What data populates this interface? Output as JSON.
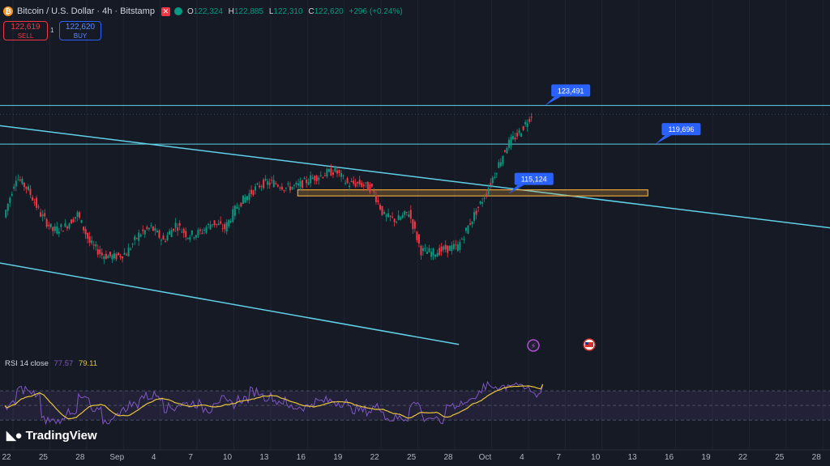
{
  "header": {
    "title": "Bitcoin / U.S. Dollar · 4h · Bitstamp",
    "icon": "bitcoin-icon",
    "ohlc": [
      {
        "key": "O",
        "value": "122,324"
      },
      {
        "key": "H",
        "value": "122,885"
      },
      {
        "key": "L",
        "value": "122,310"
      },
      {
        "key": "C",
        "value": "122,620"
      }
    ],
    "change": "+296 (+0.24%)"
  },
  "trade": {
    "sell_price": "122,619",
    "sell_label": "SELL",
    "spread": "1",
    "buy_price": "122,620",
    "buy_label": "BUY"
  },
  "rsi": {
    "name": "RSI 14 close",
    "value": "77.57",
    "ma": "79.11"
  },
  "brand": "TradingView",
  "colors": {
    "background": "#161a25",
    "up": "#089981",
    "down": "#f23645",
    "trendline": "#5fd0e6",
    "zone": "#e8a33b",
    "callout": "#2962ff",
    "rsi": "#7e57c2",
    "rsi_ma": "#e8c53a"
  },
  "chart_data": {
    "type": "candlestick",
    "timeframe": "4h",
    "x_ticks": [
      "22",
      "25",
      "28",
      "Sep",
      "4",
      "7",
      "10",
      "13",
      "16",
      "19",
      "22",
      "25",
      "28",
      "Oct",
      "4",
      "7",
      "10",
      "13",
      "16",
      "19",
      "22",
      "25",
      "28"
    ],
    "price_path": [
      {
        "date": "Aug 22",
        "close": 112500
      },
      {
        "date": "Aug 23",
        "close": 116500
      },
      {
        "date": "Aug 24",
        "close": 115200
      },
      {
        "date": "Aug 25",
        "close": 112800
      },
      {
        "date": "Aug 26",
        "close": 111200
      },
      {
        "date": "Aug 27",
        "close": 111600
      },
      {
        "date": "Aug 28",
        "close": 112800
      },
      {
        "date": "Aug 29",
        "close": 110000
      },
      {
        "date": "Aug 30",
        "close": 108800
      },
      {
        "date": "Aug 31",
        "close": 108600
      },
      {
        "date": "Sep 1",
        "close": 109000
      },
      {
        "date": "Sep 2",
        "close": 110800
      },
      {
        "date": "Sep 3",
        "close": 111500
      },
      {
        "date": "Sep 4",
        "close": 110200
      },
      {
        "date": "Sep 5",
        "close": 111800
      },
      {
        "date": "Sep 6",
        "close": 110700
      },
      {
        "date": "Sep 7",
        "close": 111000
      },
      {
        "date": "Sep 8",
        "close": 112000
      },
      {
        "date": "Sep 9",
        "close": 111400
      },
      {
        "date": "Sep 10",
        "close": 113600
      },
      {
        "date": "Sep 11",
        "close": 114800
      },
      {
        "date": "Sep 12",
        "close": 115800
      },
      {
        "date": "Sep 13",
        "close": 115900
      },
      {
        "date": "Sep 14",
        "close": 115400
      },
      {
        "date": "Sep 15",
        "close": 115600
      },
      {
        "date": "Sep 16",
        "close": 116300
      },
      {
        "date": "Sep 17",
        "close": 116700
      },
      {
        "date": "Sep 18",
        "close": 117100
      },
      {
        "date": "Sep 19",
        "close": 115800
      },
      {
        "date": "Sep 20",
        "close": 115800
      },
      {
        "date": "Sep 21",
        "close": 115300
      },
      {
        "date": "Sep 22",
        "close": 112600
      },
      {
        "date": "Sep 23",
        "close": 112200
      },
      {
        "date": "Sep 24",
        "close": 113000
      },
      {
        "date": "Sep 25",
        "close": 109200
      },
      {
        "date": "Sep 26",
        "close": 109000
      },
      {
        "date": "Sep 27",
        "close": 109400
      },
      {
        "date": "Sep 28",
        "close": 109600
      },
      {
        "date": "Sep 29",
        "close": 112000
      },
      {
        "date": "Sep 30",
        "close": 114200
      },
      {
        "date": "Oct 1",
        "close": 116800
      },
      {
        "date": "Oct 2",
        "close": 119600
      },
      {
        "date": "Oct 3",
        "close": 120800
      },
      {
        "date": "Oct 4",
        "close": 122620
      }
    ],
    "horizontal_levels": [
      {
        "label": "123,491",
        "price": 123491
      },
      {
        "label": "119,696",
        "price": 119696
      }
    ],
    "callouts": [
      {
        "label": "123,491",
        "date": "Oct 5"
      },
      {
        "label": "119,696",
        "date": "Oct 14"
      },
      {
        "label": "115,124",
        "date": "Oct 2"
      }
    ],
    "zone": {
      "from": "Sep 15",
      "to": "Oct 13",
      "price_low": 114600,
      "price_high": 115200
    },
    "trendlines": [
      {
        "name": "upper-channel",
        "points": [
          {
            "date": "Aug 22",
            "price": 121500
          },
          {
            "date": "Oct 28",
            "price": 111500
          }
        ]
      },
      {
        "name": "lower-channel",
        "points": [
          {
            "date": "Aug 22",
            "price": 108000
          },
          {
            "date": "Sep 28",
            "price": 100000
          }
        ]
      }
    ],
    "event_markers": [
      "lightning-icon",
      "us-flag-icon"
    ],
    "rsi_series": {
      "length": 14,
      "last": 77.57,
      "ma_last": 79.11,
      "levels": [
        70,
        50,
        30
      ]
    }
  }
}
